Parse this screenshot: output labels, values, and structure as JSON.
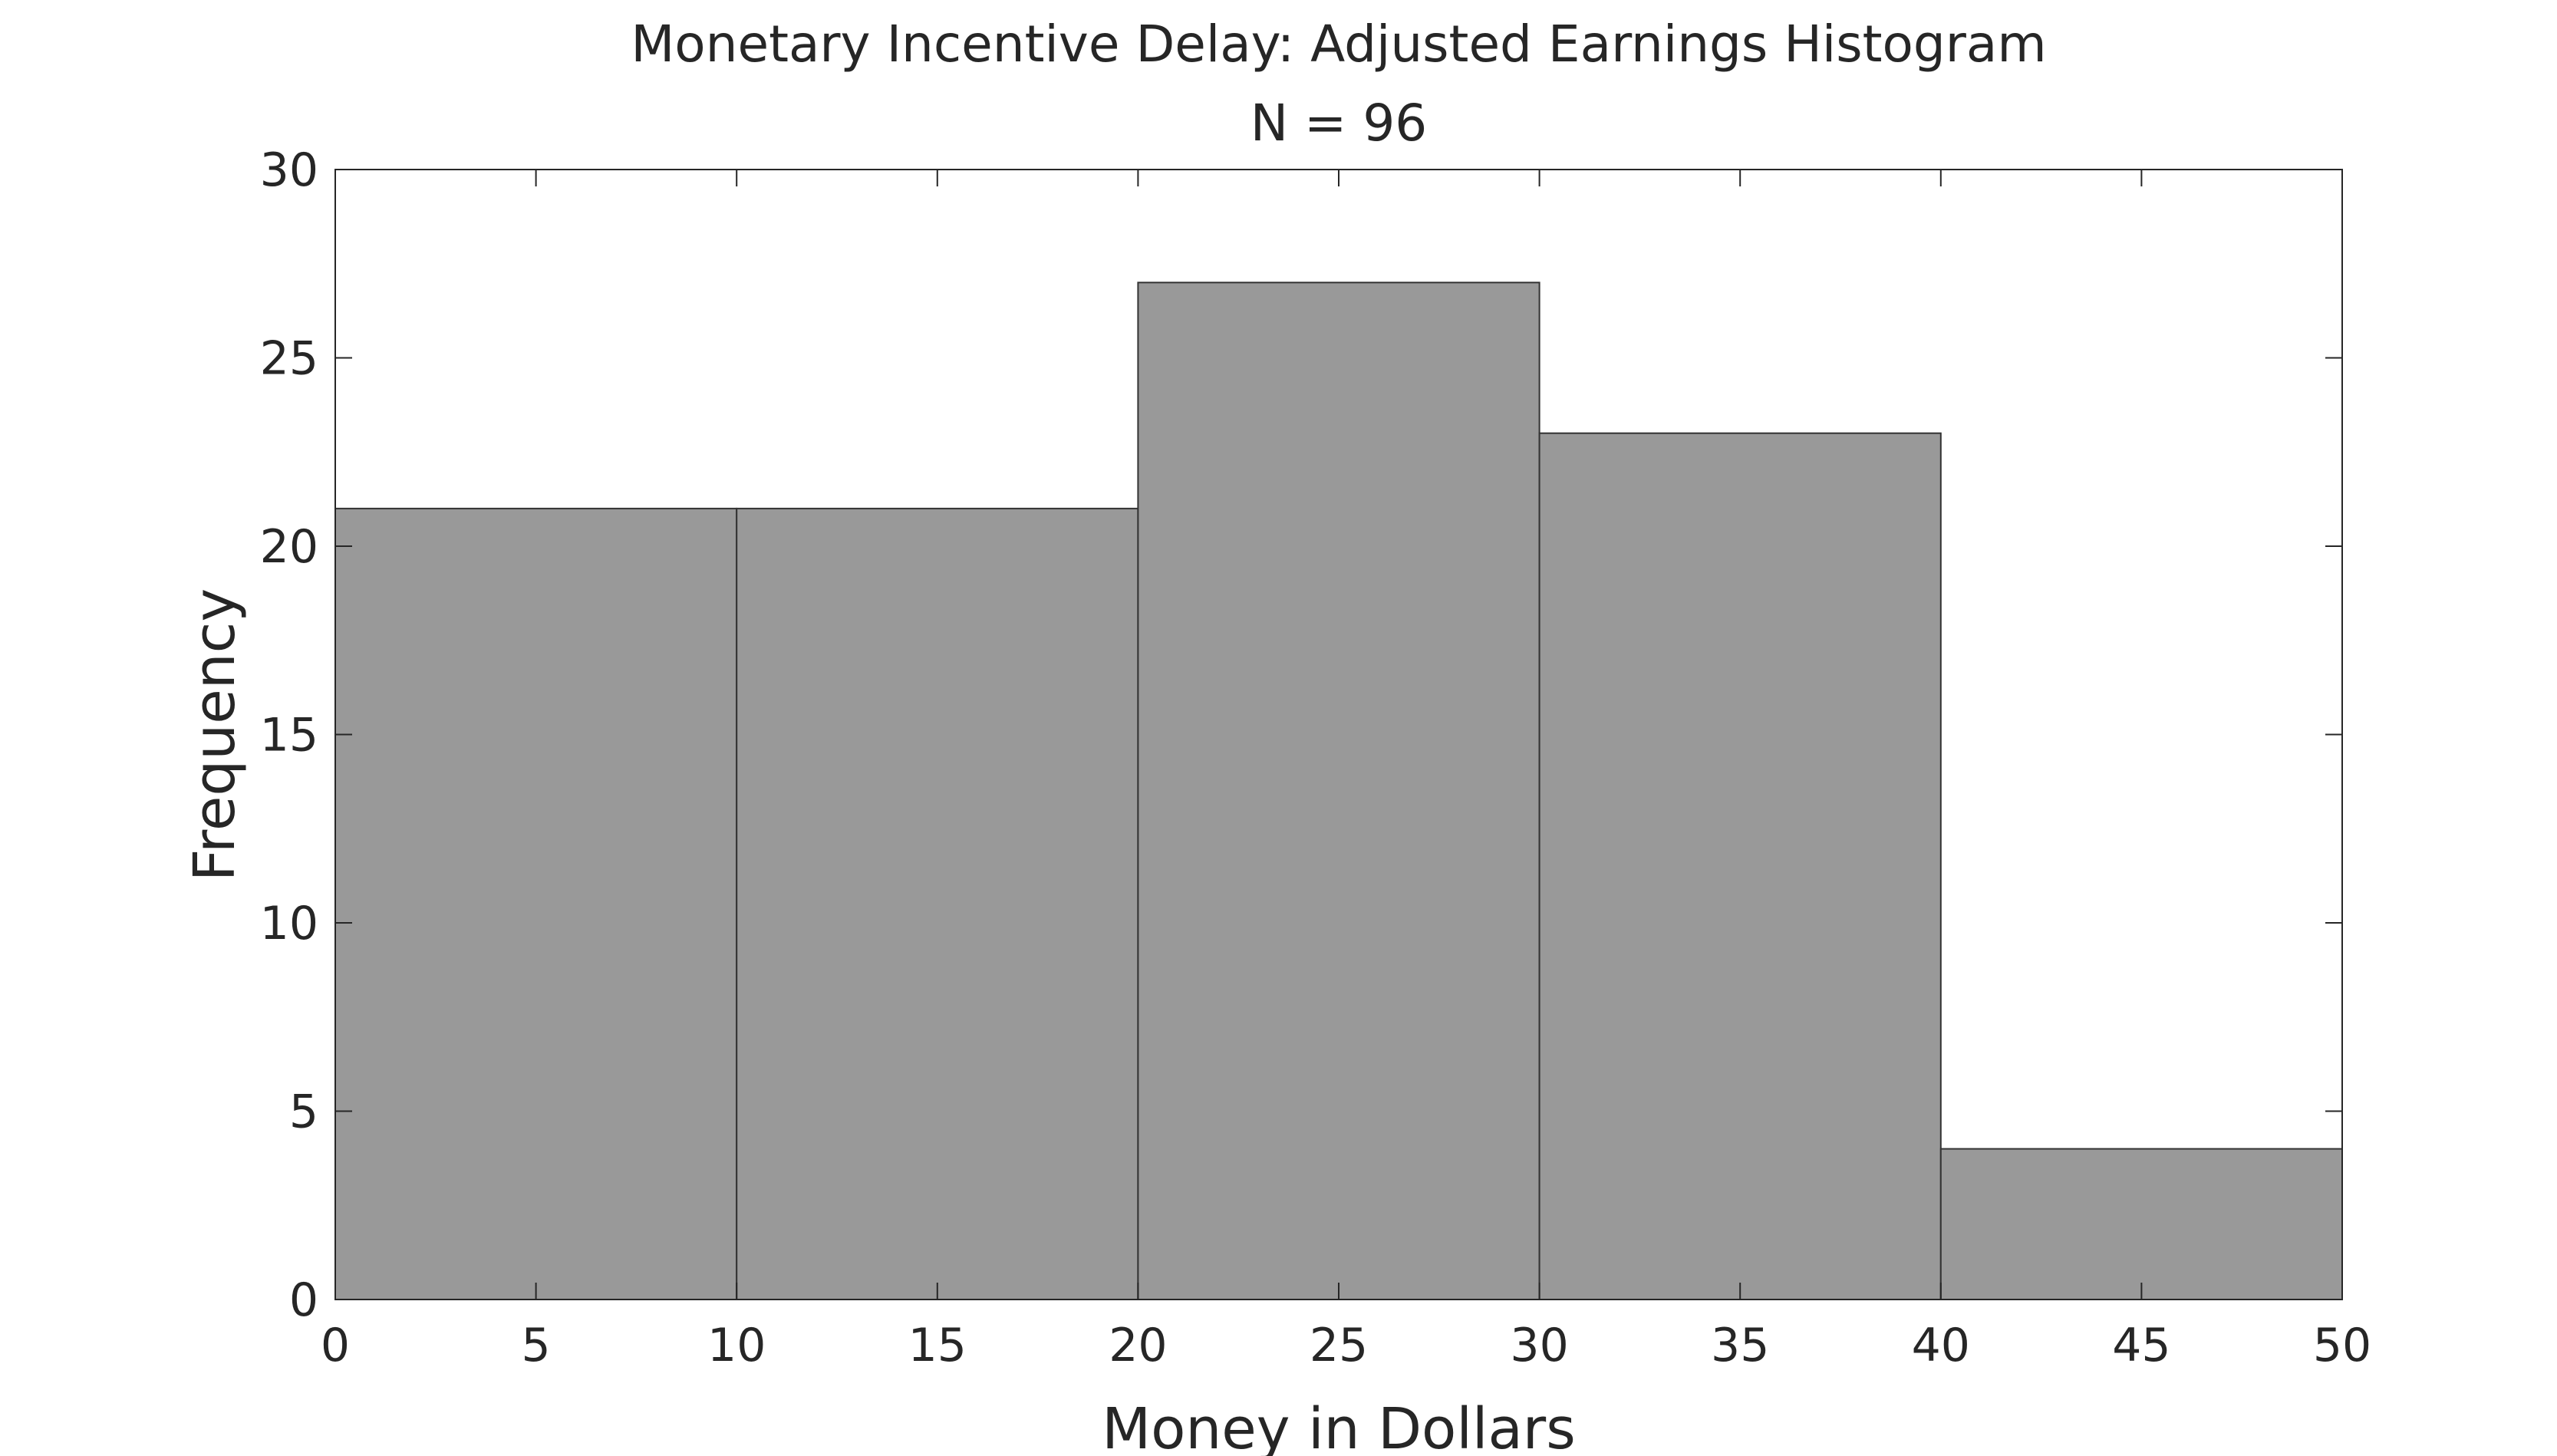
{
  "chart_data": {
    "type": "bar",
    "title": "Monetary Incentive Delay: Adjusted Earnings Histogram",
    "subtitle": "N = 96",
    "xlabel": "Money in Dollars",
    "ylabel": "Frequency",
    "xlim": [
      0,
      50
    ],
    "ylim": [
      0,
      30
    ],
    "xticks": [
      0,
      5,
      10,
      15,
      20,
      25,
      30,
      35,
      40,
      45,
      50
    ],
    "yticks": [
      0,
      5,
      10,
      15,
      20,
      25,
      30
    ],
    "bins": [
      {
        "start": 0,
        "end": 10,
        "count": 21
      },
      {
        "start": 10,
        "end": 20,
        "count": 21
      },
      {
        "start": 20,
        "end": 30,
        "count": 27
      },
      {
        "start": 30,
        "end": 40,
        "count": 23
      },
      {
        "start": 40,
        "end": 50,
        "count": 4
      }
    ],
    "grid": false,
    "bar_color": "#999999",
    "edge_color": "#333333"
  }
}
